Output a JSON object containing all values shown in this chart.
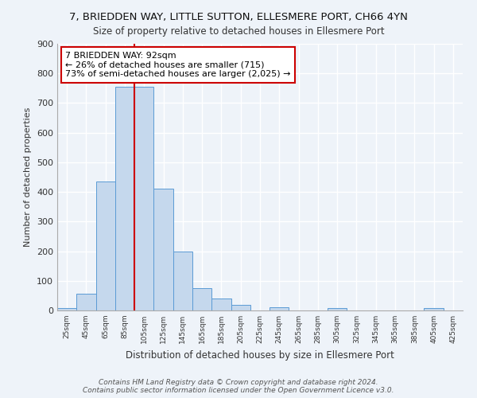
{
  "title": "7, BRIEDDEN WAY, LITTLE SUTTON, ELLESMERE PORT, CH66 4YN",
  "subtitle": "Size of property relative to detached houses in Ellesmere Port",
  "xlabel": "Distribution of detached houses by size in Ellesmere Port",
  "ylabel": "Number of detached properties",
  "bar_labels": [
    "25sqm",
    "45sqm",
    "65sqm",
    "85sqm",
    "105sqm",
    "125sqm",
    "145sqm",
    "165sqm",
    "185sqm",
    "205sqm",
    "225sqm",
    "245sqm",
    "265sqm",
    "285sqm",
    "305sqm",
    "325sqm",
    "345sqm",
    "365sqm",
    "385sqm",
    "405sqm",
    "425sqm"
  ],
  "bar_values": [
    8,
    57,
    435,
    755,
    755,
    410,
    200,
    75,
    40,
    20,
    0,
    10,
    0,
    0,
    8,
    0,
    0,
    0,
    0,
    8,
    0
  ],
  "bar_color": "#c5d8ed",
  "bar_edge_color": "#5b9bd5",
  "vline_color": "#cc0000",
  "annotation_text": "7 BRIEDDEN WAY: 92sqm\n← 26% of detached houses are smaller (715)\n73% of semi-detached houses are larger (2,025) →",
  "annotation_box_color": "white",
  "annotation_box_edge": "#cc0000",
  "ylim": [
    0,
    900
  ],
  "yticks": [
    0,
    100,
    200,
    300,
    400,
    500,
    600,
    700,
    800,
    900
  ],
  "footer": "Contains HM Land Registry data © Crown copyright and database right 2024.\nContains public sector information licensed under the Open Government Licence v3.0.",
  "bg_color": "#eef3f9",
  "grid_color": "#ffffff",
  "title_fontsize": 9.5,
  "subtitle_fontsize": 8.5
}
